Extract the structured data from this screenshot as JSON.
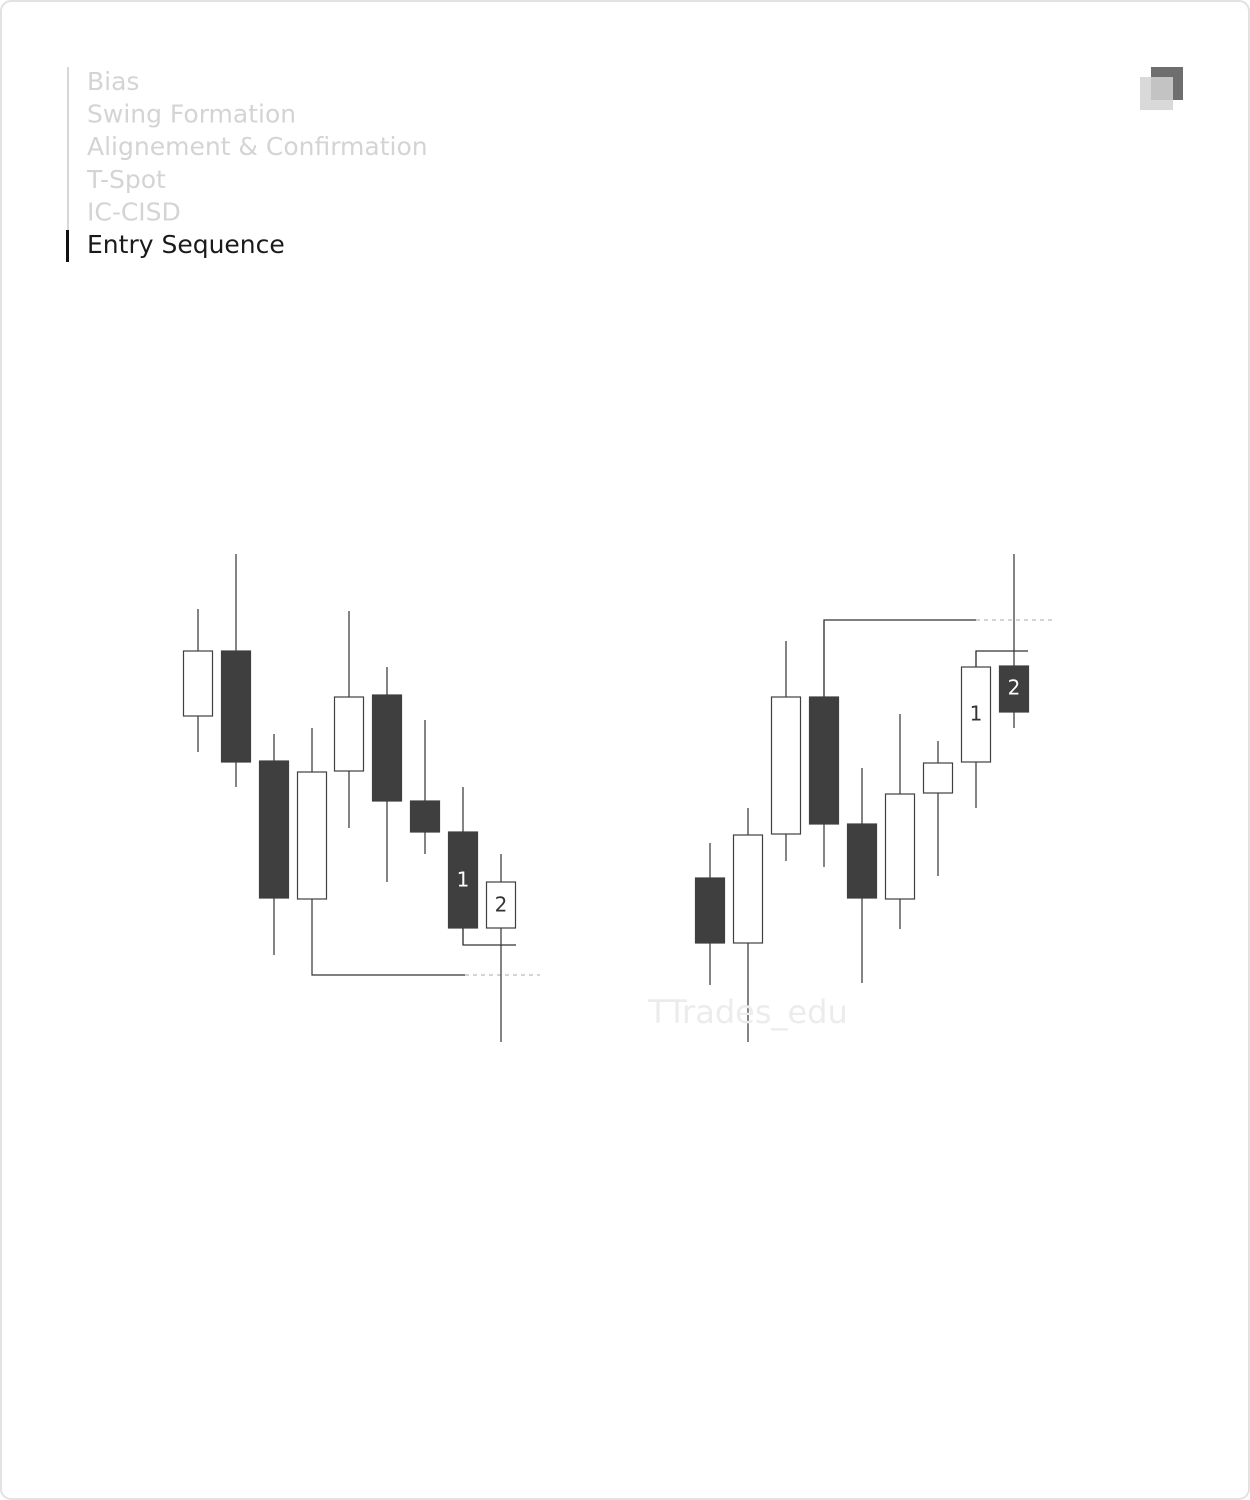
{
  "nav": {
    "items": [
      "Bias",
      "Swing Formation",
      "Alignement & Confirmation",
      "T-Spot",
      "IC-CISD",
      "Entry Sequence"
    ],
    "active": 5
  },
  "left_diagram": {
    "labels": [
      "1",
      "2"
    ]
  },
  "right_diagram": {
    "labels": [
      "1",
      "2"
    ]
  },
  "watermark": "TTrades_edu"
}
